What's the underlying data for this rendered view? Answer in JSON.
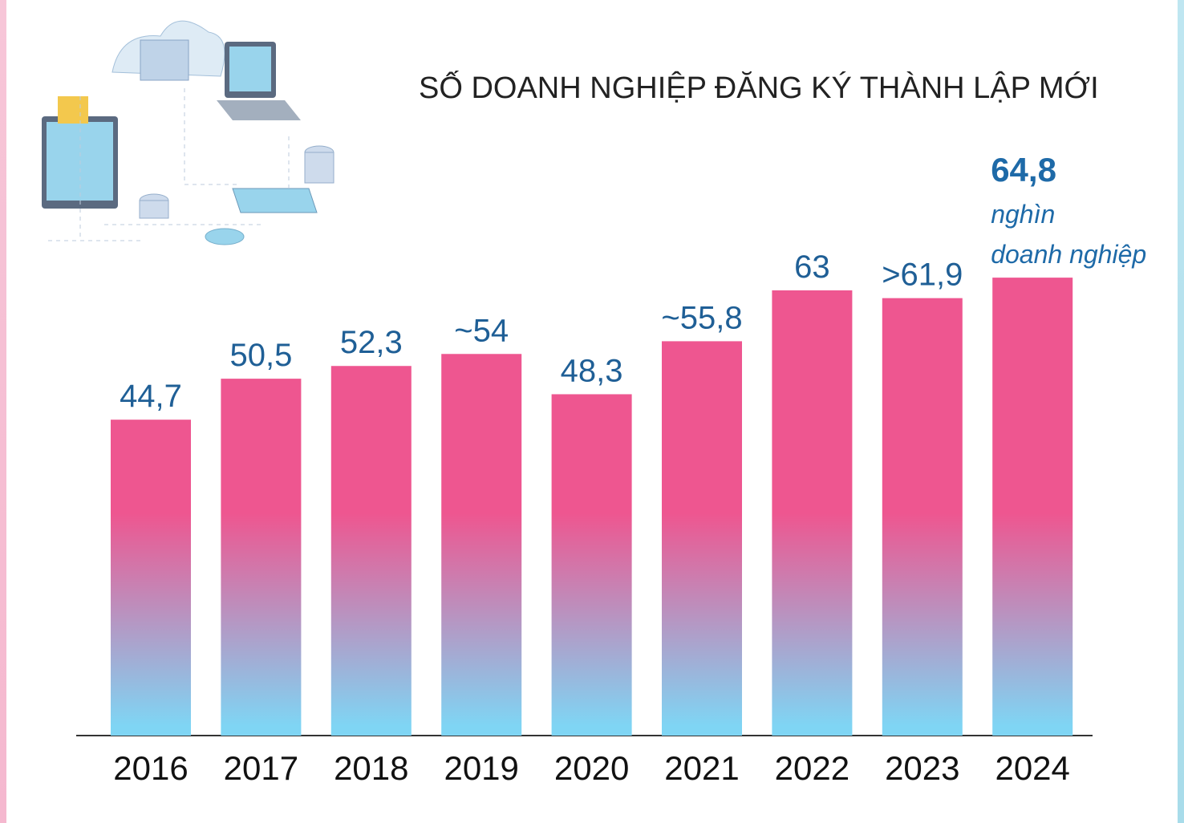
{
  "chart_data": {
    "type": "bar",
    "title": "SỐ DOANH NGHIỆP ĐĂNG KÝ THÀNH LẬP MỚI",
    "categories": [
      "2016",
      "2017",
      "2018",
      "2019",
      "2020",
      "2021",
      "2022",
      "2023",
      "2024"
    ],
    "values": [
      44.7,
      50.5,
      52.3,
      54,
      48.3,
      55.8,
      63,
      61.9,
      64.8
    ],
    "value_labels": [
      "44,7",
      "50,5",
      "52,3",
      "~54",
      "48,3",
      "~55,8",
      "63",
      ">61,9",
      "64,8"
    ],
    "unit": [
      "nghìn",
      "doanh nghiệp"
    ],
    "gradient": [
      "#ee5690",
      "#7fd5f4"
    ]
  }
}
